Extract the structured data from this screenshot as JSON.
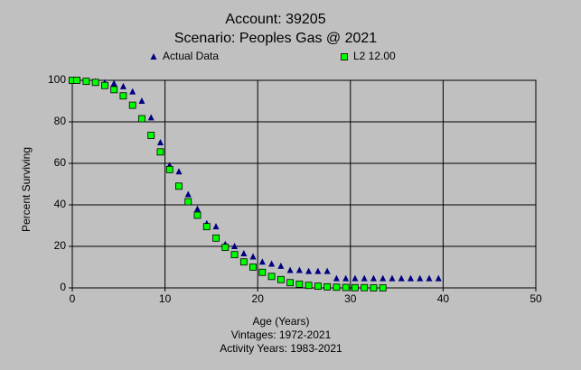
{
  "chart_data": {
    "type": "scatter",
    "title": "Account: 39205",
    "subtitle": "Scenario: Peoples Gas @ 2021",
    "x_label": "Age (Years)",
    "y_label": "Percent Surviving",
    "annotations": [
      "Vintages: 1972-2021",
      "Activity Years: 1983-2021"
    ],
    "xlim": [
      0,
      50
    ],
    "xticks": [
      0,
      10,
      20,
      30,
      40,
      50
    ],
    "ylim": [
      0,
      100
    ],
    "yticks": [
      0,
      20,
      40,
      60,
      80,
      100
    ],
    "grid": true,
    "legend": "top",
    "series": [
      {
        "name": "Actual Data",
        "color": "#000080",
        "marker": "triangle",
        "x": [
          0,
          0.5,
          1.5,
          2.5,
          3.5,
          4.5,
          5.5,
          6.5,
          7.5,
          8.5,
          9.5,
          10.5,
          11.5,
          12.5,
          13.5,
          14.5,
          15.5,
          16.5,
          17.5,
          18.5,
          19.5,
          20.5,
          21.5,
          22.5,
          23.5,
          24.5,
          25.5,
          26.5,
          27.5,
          28.5,
          29.5,
          30.5,
          31.5,
          32.5,
          33.5,
          34.5,
          35.5,
          36.5,
          37.5,
          38.5,
          39.5
        ],
        "values": [
          100,
          100,
          99.6,
          99.3,
          98.8,
          98.5,
          97,
          94.5,
          90,
          82,
          70,
          59,
          56,
          45,
          38,
          31,
          29.5,
          21,
          20,
          16.5,
          15,
          12.5,
          11.5,
          10.5,
          8.5,
          8.5,
          8,
          8,
          8,
          4.5,
          4.5,
          4.5,
          4.5,
          4.5,
          4.5,
          4.5,
          4.5,
          4.5,
          4.5,
          4.5,
          4.5
        ]
      },
      {
        "name": "L2 12.00",
        "color": "#00ff00",
        "marker": "square",
        "x": [
          0,
          0.5,
          1.5,
          2.5,
          3.5,
          4.5,
          5.5,
          6.5,
          7.5,
          8.5,
          9.5,
          10.5,
          11.5,
          12.5,
          13.5,
          14.5,
          15.5,
          16.5,
          17.5,
          18.5,
          19.5,
          20.5,
          21.5,
          22.5,
          23.5,
          24.5,
          25.5,
          26.5,
          27.5,
          28.5,
          29.5,
          30.5,
          31.5,
          32.5,
          33.5
        ],
        "values": [
          100,
          100,
          99.5,
          99,
          97.5,
          95.5,
          92.5,
          88,
          81.5,
          73.5,
          65.5,
          57,
          49,
          41.5,
          35,
          29.5,
          24,
          19.5,
          16,
          12.5,
          10,
          7.5,
          5.5,
          4,
          2.5,
          1.8,
          1.2,
          0.8,
          0.5,
          0.3,
          0.2,
          0.1,
          0.1,
          0,
          0
        ]
      }
    ]
  }
}
